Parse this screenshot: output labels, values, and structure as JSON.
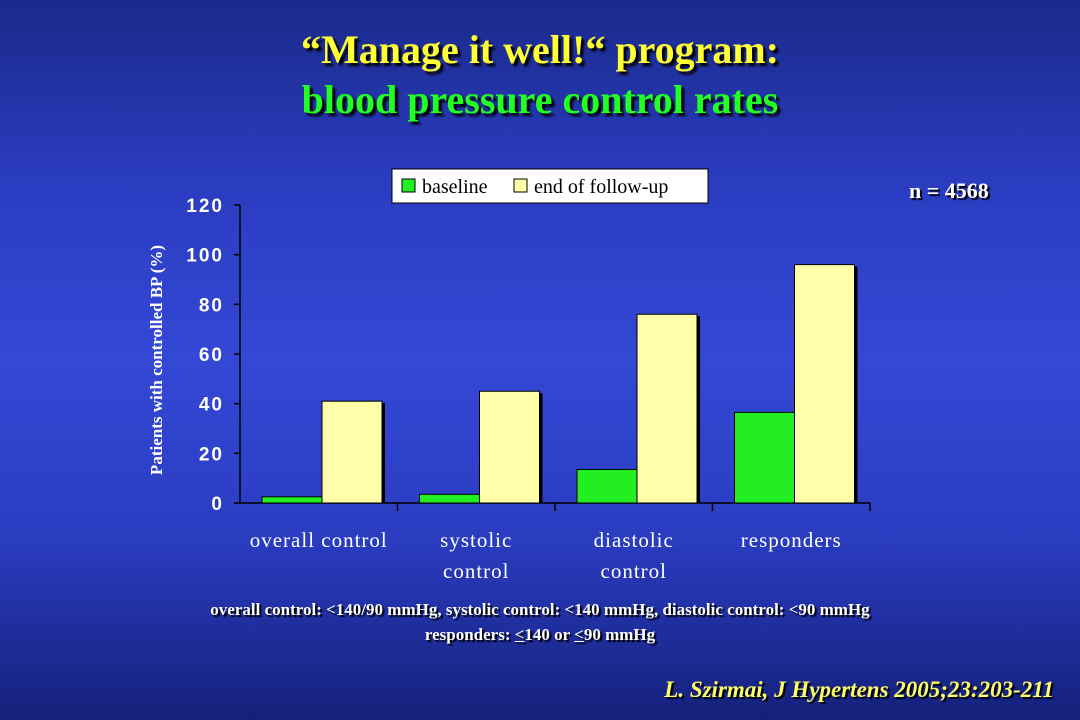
{
  "slide": {
    "title_line1": "“Manage it well!“ program:",
    "title_line2": "blood pressure control rates",
    "n_label": "n = 4568",
    "note_line1": "overall control: <140/90 mmHg, systolic control: <140 mmHg, diastolic control: <90 mmHg",
    "note_line2_pre": "responders: ",
    "note_line2_u1": "<",
    "note_line2_mid": "140 or ",
    "note_line2_u2": "<",
    "note_line2_post": "90 mmHg",
    "citation": "L. Szirmai, J Hypertens 2005;23:203-211"
  },
  "colors": {
    "baseline": "#22ee22",
    "followup": "#ffffaa"
  },
  "chart_data": {
    "type": "bar",
    "categories": [
      [
        "overall control"
      ],
      [
        "systolic",
        "control"
      ],
      [
        "diastolic",
        "control"
      ],
      [
        "responders"
      ]
    ],
    "series": [
      {
        "name": "baseline",
        "values": [
          2.5,
          3.5,
          13.5,
          36.5
        ]
      },
      {
        "name": "end of follow-up",
        "values": [
          41,
          45,
          76,
          96
        ]
      }
    ],
    "ylabel": "Patients with controlled BP (%)",
    "yticks": [
      0,
      20,
      40,
      60,
      80,
      100,
      120
    ],
    "ylim": [
      0,
      120
    ],
    "legend_position": "top",
    "grid": false
  }
}
